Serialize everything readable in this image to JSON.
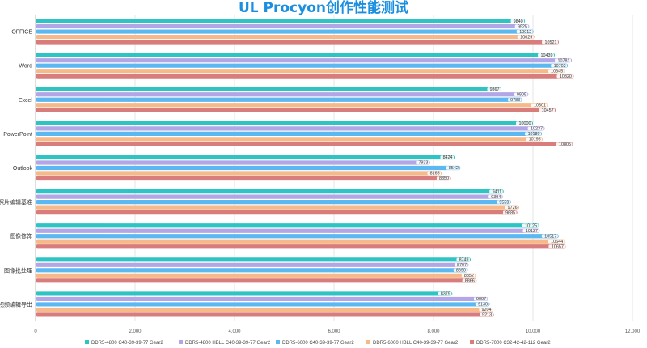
{
  "chart_data": {
    "type": "bar",
    "orientation": "horizontal",
    "title": "UL Procyon创作性能测试",
    "categories": [
      "OFFICE",
      "Word",
      "Excel",
      "PowerPoint",
      "Outlook",
      "照片编辑基准",
      "图像修饰",
      "图像批处理",
      "视频编辑导出"
    ],
    "xlim": [
      0,
      12000
    ],
    "x_ticks": [
      "0",
      "2,000",
      "4,000",
      "6,000",
      "8,000",
      "10,000",
      "12,000"
    ],
    "grid": true,
    "legend_position": "bottom",
    "series": [
      {
        "name": "DDR5-4800 C40-39-39-77 Gear2",
        "color": "#2ec4c4",
        "values": [
          9840,
          10439,
          9367,
          10000,
          8424,
          9411,
          10125,
          8749,
          8379
        ]
      },
      {
        "name": "DDR5-4800 HBLL C40-39-39-77 Gear2",
        "color": "#b3a6e6",
        "values": [
          9925,
          10781,
          9909,
          10237,
          7933,
          9394,
          10137,
          8707,
          9097
        ]
      },
      {
        "name": "DDR5-6000 C40-39-39-77 Gear2",
        "color": "#5bb8f0",
        "values": [
          10012,
          10702,
          9783,
          10180,
          8542,
          9559,
          10517,
          8690,
          9130
        ]
      },
      {
        "name": "DDR5-6000 HBLL C40-39-39-77 Gear2",
        "color": "#f7b98a",
        "values": [
          10029,
          10645,
          10301,
          10198,
          8165,
          9726,
          10644,
          8852,
          9204
        ]
      },
      {
        "name": "DDR5-7000 C32-42-42-112 Gear2",
        "color": "#d97c7c",
        "values": [
          10521,
          10820,
          10457,
          10805,
          8350,
          9685,
          10657,
          8866,
          9213
        ]
      }
    ]
  }
}
